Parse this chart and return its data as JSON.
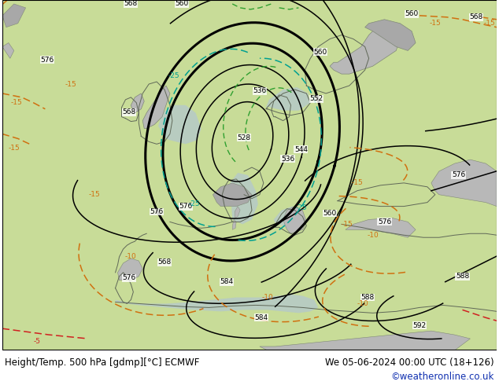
{
  "title_left": "Height/Temp. 500 hPa [gdmp][°C] ECMWF",
  "title_right": "We 05-06-2024 00:00 UTC (18+126)",
  "credit": "©weatheronline.co.uk",
  "land_color": "#b8d090",
  "land_color2": "#c8dc98",
  "sea_color": "#c8d8c0",
  "grey_land": "#a8a8a8",
  "grey_land2": "#b8b8b8",
  "contour_geo_color": "#000000",
  "contour_geo_bold_color": "#000000",
  "contour_temp_orange": "#d07010",
  "contour_temp_teal": "#00a090",
  "contour_temp_green": "#30a030",
  "contour_temp_red": "#d02020",
  "text_color": "#000000",
  "credit_color": "#1030b0",
  "fig_width": 6.34,
  "fig_height": 4.9,
  "dpi": 100
}
